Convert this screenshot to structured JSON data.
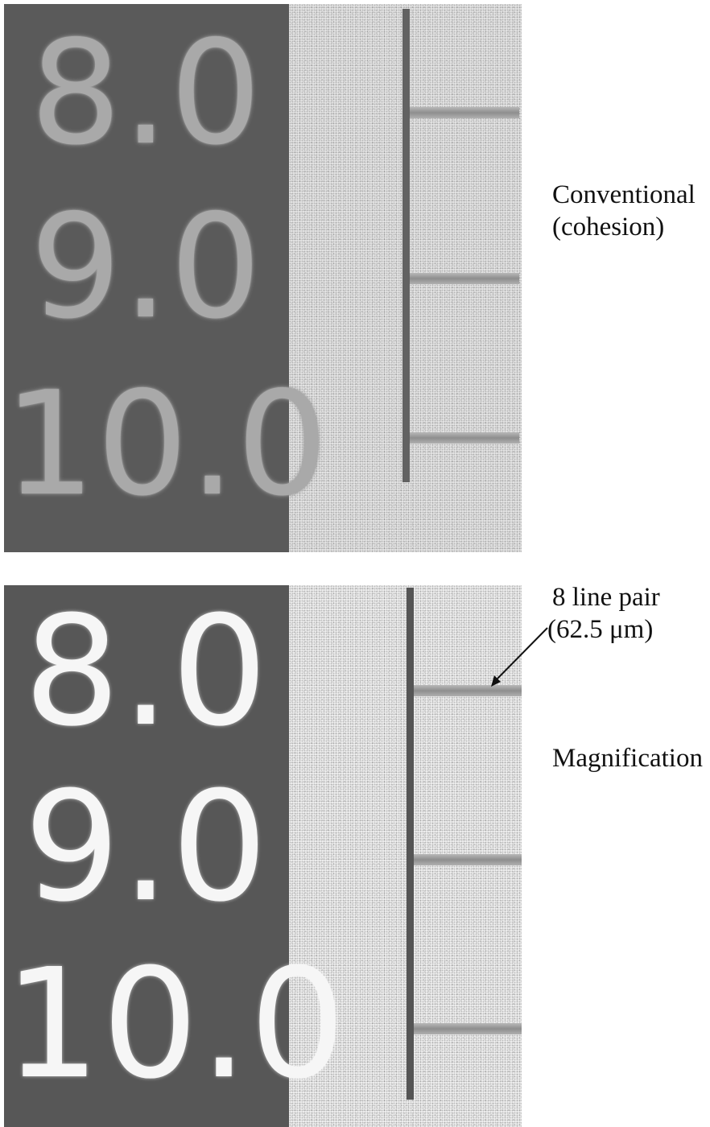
{
  "top_panel": {
    "digits": [
      "8.0",
      "9.0",
      "10.0"
    ],
    "label_line1": "Conventional",
    "label_line2": "(cohesion)"
  },
  "bottom_panel": {
    "digits": [
      "8.0",
      "9.0",
      "10.0"
    ],
    "annotation_line1": "8 line pair",
    "annotation_line2": "(62.5 μm)",
    "label": "Magnification"
  },
  "colors": {
    "dark_background": "#5a5a5a",
    "light_background": "#ececec",
    "bar": "#5e5e5e"
  }
}
